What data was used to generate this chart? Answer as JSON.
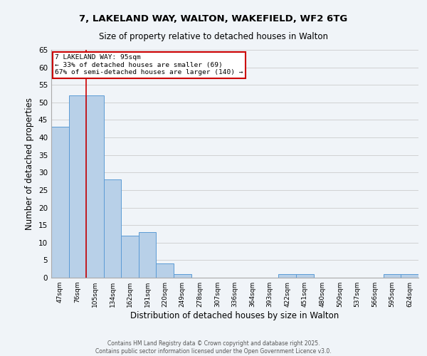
{
  "title_line1": "7, LAKELAND WAY, WALTON, WAKEFIELD, WF2 6TG",
  "title_line2": "Size of property relative to detached houses in Walton",
  "xlabel": "Distribution of detached houses by size in Walton",
  "ylabel": "Number of detached properties",
  "categories": [
    "47sqm",
    "76sqm",
    "105sqm",
    "134sqm",
    "162sqm",
    "191sqm",
    "220sqm",
    "249sqm",
    "278sqm",
    "307sqm",
    "336sqm",
    "364sqm",
    "393sqm",
    "422sqm",
    "451sqm",
    "480sqm",
    "509sqm",
    "537sqm",
    "566sqm",
    "595sqm",
    "624sqm"
  ],
  "values": [
    43,
    52,
    52,
    28,
    12,
    13,
    4,
    1,
    0,
    0,
    0,
    0,
    0,
    1,
    1,
    0,
    0,
    0,
    0,
    1,
    1
  ],
  "bar_color": "#b8d0e8",
  "bar_edge_color": "#5b9bd5",
  "vline_x_index": 2,
  "annotation_text_line1": "7 LAKELAND WAY: 95sqm",
  "annotation_text_line2": "← 33% of detached houses are smaller (69)",
  "annotation_text_line3": "67% of semi-detached houses are larger (140) →",
  "annotation_box_color": "#ffffff",
  "annotation_box_edge": "#cc0000",
  "vline_color": "#cc0000",
  "grid_color": "#cccccc",
  "background_color": "#f0f4f8",
  "footer_line1": "Contains HM Land Registry data © Crown copyright and database right 2025.",
  "footer_line2": "Contains public sector information licensed under the Open Government Licence v3.0.",
  "ylim": [
    0,
    65
  ],
  "yticks": [
    0,
    5,
    10,
    15,
    20,
    25,
    30,
    35,
    40,
    45,
    50,
    55,
    60,
    65
  ]
}
